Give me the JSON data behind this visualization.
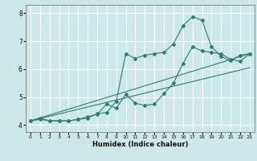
{
  "xlabel": "Humidex (Indice chaleur)",
  "bg_color": "#cde8e8",
  "grid_color": "#ffffff",
  "line_color": "#2e7d6e",
  "xlim": [
    -0.5,
    23.5
  ],
  "ylim": [
    3.75,
    8.3
  ],
  "yticks": [
    4,
    5,
    6,
    7,
    8
  ],
  "xticks": [
    0,
    1,
    2,
    3,
    4,
    5,
    6,
    7,
    8,
    9,
    10,
    11,
    12,
    13,
    14,
    15,
    16,
    17,
    18,
    19,
    20,
    21,
    22,
    23
  ],
  "line1_x": [
    0,
    1,
    2,
    3,
    4,
    5,
    6,
    7,
    8,
    9,
    10,
    11,
    12,
    13,
    14,
    15,
    16,
    17,
    18,
    19,
    20,
    21,
    22,
    23
  ],
  "line1_y": [
    4.15,
    4.25,
    4.15,
    4.15,
    4.15,
    4.2,
    4.25,
    4.4,
    4.45,
    4.85,
    6.55,
    6.38,
    6.5,
    6.55,
    6.6,
    6.9,
    7.55,
    7.88,
    7.75,
    6.8,
    6.45,
    6.3,
    6.5,
    6.55
  ],
  "line2_x": [
    0,
    1,
    2,
    3,
    4,
    5,
    6,
    7,
    8,
    9,
    10,
    11,
    12,
    13,
    14,
    15,
    16,
    17,
    18,
    19,
    20,
    21,
    22,
    23
  ],
  "line2_y": [
    4.15,
    4.2,
    4.15,
    4.15,
    4.15,
    4.2,
    4.3,
    4.38,
    4.75,
    4.6,
    5.1,
    4.78,
    4.7,
    4.75,
    5.12,
    5.5,
    6.2,
    6.8,
    6.65,
    6.6,
    6.55,
    6.35,
    6.28,
    6.55
  ],
  "line3_x": [
    0,
    23
  ],
  "line3_y": [
    4.15,
    6.55
  ],
  "line4_x": [
    0,
    23
  ],
  "line4_y": [
    4.15,
    6.05
  ]
}
